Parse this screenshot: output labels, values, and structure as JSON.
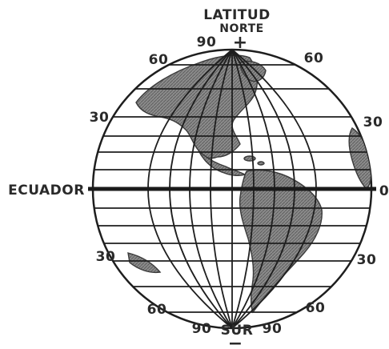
{
  "top_label": {
    "line1": "LATITUD",
    "line2": "NORTE",
    "sign": "+"
  },
  "bottom_label": {
    "text": "SUR",
    "sign": "−"
  },
  "equator_left": "ECUADOR",
  "equator_right": "0",
  "north": {
    "left_90": "90",
    "left_60": "60",
    "right_60": "60"
  },
  "mid": {
    "left_30_n": "30",
    "right_30_n": "30",
    "left_30_s": "30",
    "right_30_s": "30"
  },
  "south": {
    "left_60": "60",
    "right_60": "60",
    "left_90": "90",
    "right_90": "90"
  },
  "icons": {
    "continents": "americas-landmass-icon"
  }
}
